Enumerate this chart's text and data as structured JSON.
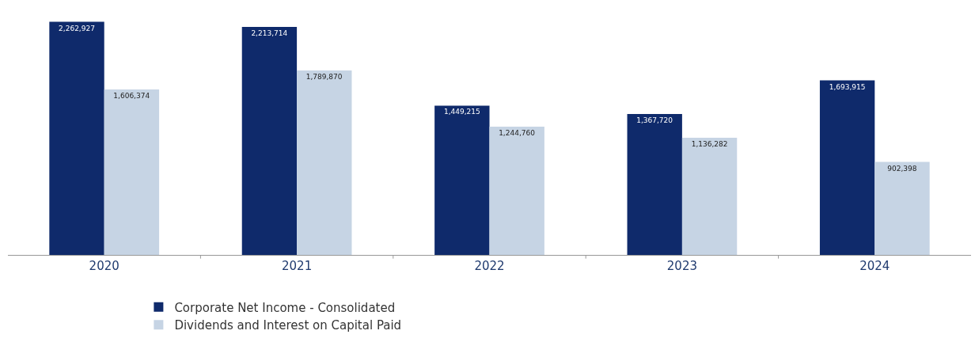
{
  "chart_data": {
    "type": "bar",
    "categories": [
      "2020",
      "2021",
      "2022",
      "2023",
      "2024"
    ],
    "series": [
      {
        "name": "Corporate Net Income - Consolidated",
        "color": "#0f2a6b",
        "values": [
          2262927,
          2213714,
          1449215,
          1367720,
          1693915
        ],
        "value_labels": [
          "2,262,927",
          "2,213,714",
          "1,449,215",
          "1,367,720",
          "1,693,915"
        ]
      },
      {
        "name": "Dividends and Interest on Capital Paid",
        "color": "#c6d4e4",
        "values": [
          1606374,
          1789870,
          1244760,
          1136282,
          902398
        ],
        "value_labels": [
          "1,606,374",
          "1,789,870",
          "1,244,760",
          "1,136,282",
          "902,398"
        ]
      }
    ],
    "legend": "bottom",
    "grid": false,
    "tick_labels": "x"
  }
}
